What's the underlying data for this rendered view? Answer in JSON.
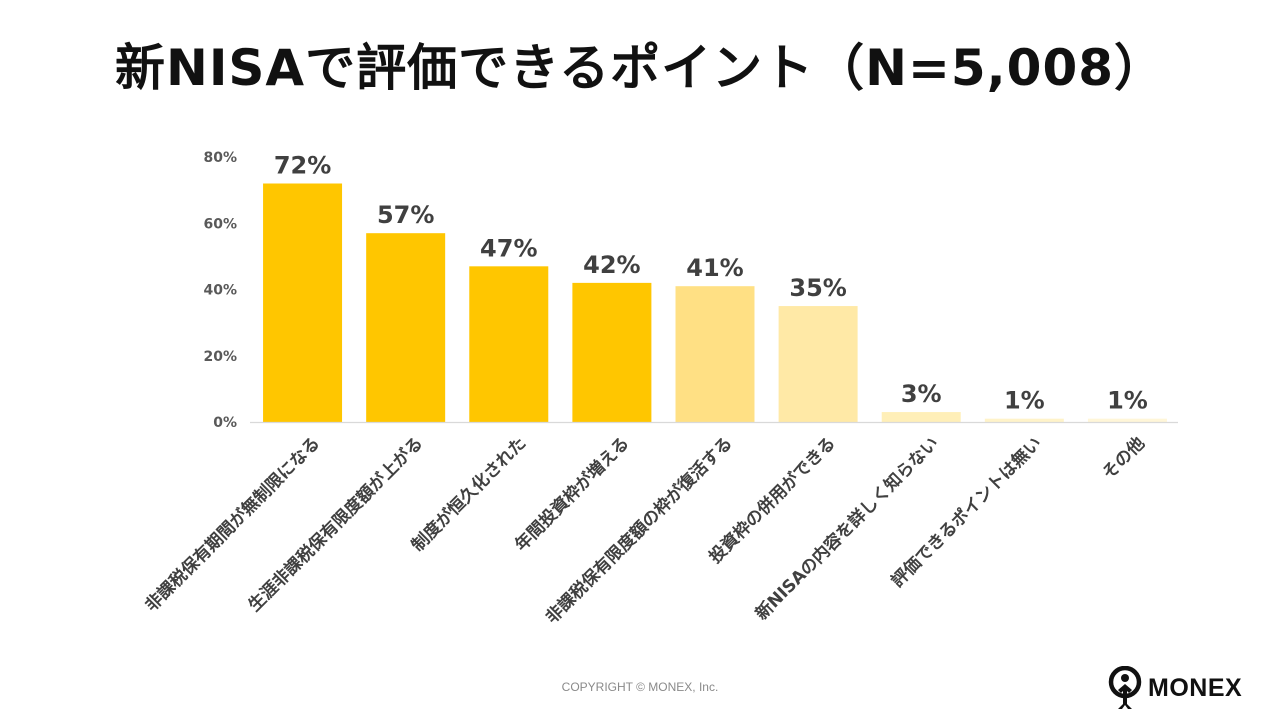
{
  "title": "新NISAで評価できるポイント（N=5,008）",
  "copyright": "COPYRIGHT © MONEX, Inc.",
  "logo": {
    "text": "MONEX",
    "icon": "monex-figure-icon"
  },
  "chart_data": {
    "type": "bar",
    "title": "新NISAで評価できるポイント（N=5,008）",
    "categories": [
      "非課税保有期間が無制限になる",
      "生涯非課税保有限度額が上がる",
      "制度が恒久化された",
      "年間投資枠が増える",
      "非課税保有限度額の枠が復活する",
      "投資枠の併用ができる",
      "新NISAの内容を詳しく知らない",
      "評価できるポイントは無い",
      "その他"
    ],
    "values": [
      72,
      57,
      47,
      42,
      41,
      35,
      3,
      1,
      1
    ],
    "data_labels": [
      "72%",
      "57%",
      "47%",
      "42%",
      "41%",
      "35%",
      "3%",
      "1%",
      "1%"
    ],
    "bar_colors": [
      "#FFC600",
      "#FFC600",
      "#FFC600",
      "#FFC600",
      "#FFE084",
      "#FFE9A6",
      "#FFEFB8",
      "#FFF3C9",
      "#FFF6D8"
    ],
    "y_ticks": [
      "0%",
      "20%",
      "40%",
      "60%",
      "80%"
    ],
    "y_tick_values": [
      0,
      20,
      40,
      60,
      80
    ],
    "ylim": [
      0,
      80
    ],
    "xlabel": "",
    "ylabel": "",
    "grid": false,
    "legend": "none",
    "axis_color": "#d9d9d9"
  }
}
